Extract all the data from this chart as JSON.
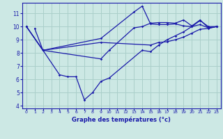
{
  "title": "Graphe des températures (°c)",
  "bg_color": "#cce8e4",
  "grid_color": "#aacfca",
  "line_color": "#1a1aaa",
  "xlim": [
    -0.5,
    23.5
  ],
  "ylim": [
    3.8,
    11.8
  ],
  "xticks": [
    0,
    1,
    2,
    3,
    4,
    5,
    6,
    7,
    8,
    9,
    10,
    11,
    12,
    13,
    14,
    15,
    16,
    17,
    18,
    19,
    20,
    21,
    22,
    23
  ],
  "yticks": [
    4,
    5,
    6,
    7,
    8,
    9,
    10,
    11
  ],
  "series": [
    {
      "x": [
        0,
        2,
        9,
        13,
        14,
        15,
        16,
        17,
        18,
        19,
        20,
        21,
        22,
        23
      ],
      "y": [
        10.0,
        8.2,
        9.1,
        11.1,
        11.55,
        10.2,
        10.15,
        10.15,
        10.2,
        10.05,
        10.0,
        10.45,
        10.0,
        10.0
      ]
    },
    {
      "x": [
        0,
        2,
        4,
        5,
        6,
        7,
        8,
        9,
        10,
        14,
        15,
        16,
        17,
        18,
        19,
        20,
        21,
        22,
        23
      ],
      "y": [
        10.0,
        8.2,
        6.35,
        6.2,
        6.2,
        4.45,
        5.0,
        5.85,
        6.1,
        8.2,
        8.1,
        8.6,
        9.0,
        9.3,
        9.6,
        10.0,
        10.15,
        9.9,
        10.0
      ]
    },
    {
      "x": [
        0,
        2,
        9,
        15,
        16,
        17,
        18,
        19,
        20,
        21,
        22,
        23
      ],
      "y": [
        10.0,
        8.2,
        8.8,
        8.6,
        8.8,
        8.85,
        9.0,
        9.2,
        9.5,
        9.8,
        9.85,
        10.0
      ]
    },
    {
      "x": [
        1,
        2,
        9,
        10,
        13,
        14,
        15,
        16,
        17,
        18,
        19,
        20,
        21,
        22,
        23
      ],
      "y": [
        9.85,
        8.2,
        7.55,
        8.2,
        9.9,
        10.0,
        10.25,
        10.3,
        10.3,
        10.25,
        10.5,
        10.05,
        10.5,
        9.9,
        10.0
      ]
    }
  ]
}
